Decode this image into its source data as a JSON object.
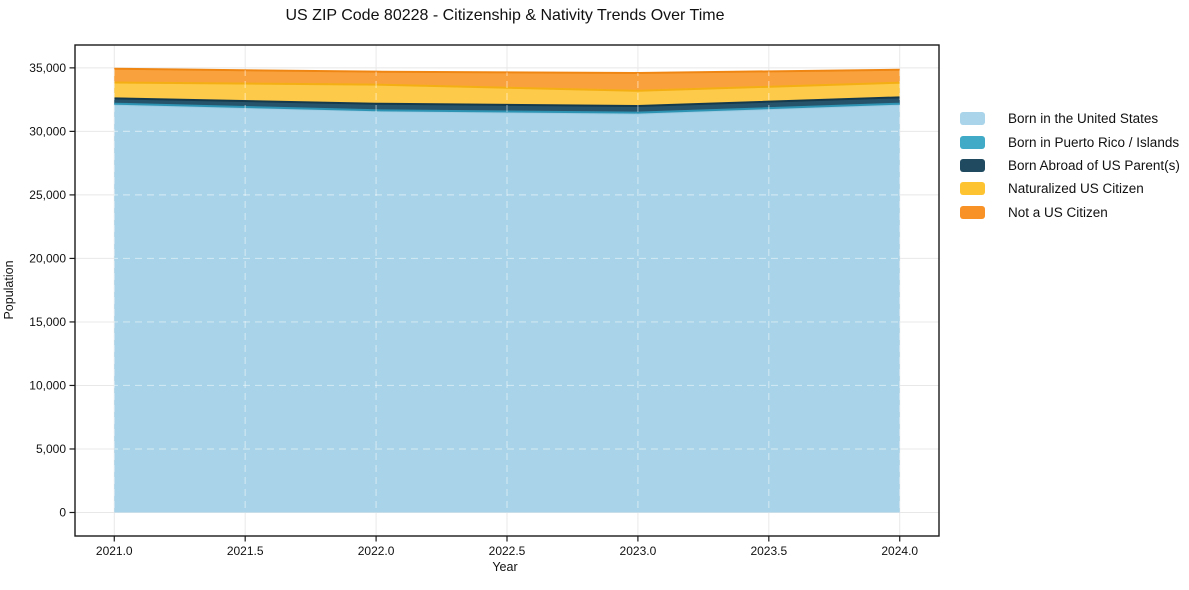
{
  "chart_data": {
    "type": "area",
    "stacked": true,
    "title": "US ZIP Code 80228 - Citizenship & Nativity Trends Over Time",
    "xlabel": "Year",
    "ylabel": "Population",
    "x": [
      2021,
      2022,
      2023,
      2024
    ],
    "series": [
      {
        "name": "Born in the United States",
        "values": [
          32100,
          31600,
          31400,
          32100
        ],
        "fill": "#A8D3E8",
        "edge": "#9CCBE2",
        "legend": "#A9D4E9"
      },
      {
        "name": "Born in Puerto Rico / Islands",
        "values": [
          80,
          60,
          80,
          80
        ],
        "fill": "#4FB0CA",
        "edge": "#2E94B4",
        "legend": "#41ABC7"
      },
      {
        "name": "Born Abroad of US Parent(s)",
        "values": [
          420,
          520,
          520,
          500
        ],
        "fill": "#26536A",
        "edge": "#15394C",
        "legend": "#1F4A5F"
      },
      {
        "name": "Naturalized US Citizen",
        "values": [
          1250,
          1500,
          1200,
          1150
        ],
        "fill": "#FDCA49",
        "edge": "#F4AF13",
        "legend": "#FDC330"
      },
      {
        "name": "Not a US Citizen",
        "values": [
          1080,
          1020,
          1400,
          1020
        ],
        "fill": "#F9A23D",
        "edge": "#EF8613",
        "legend": "#F89227"
      }
    ],
    "xlim": [
      2020.85,
      2024.15
    ],
    "ylim": [
      -1850,
      36800
    ],
    "xticks": {
      "values": [
        2021,
        2021.5,
        2022,
        2022.5,
        2023,
        2023.5,
        2024
      ],
      "labels": [
        "2021.0",
        "2021.5",
        "2022.0",
        "2022.5",
        "2023.0",
        "2023.5",
        "2024.0"
      ]
    },
    "yticks": {
      "values": [
        0,
        5000,
        10000,
        15000,
        20000,
        25000,
        30000,
        35000
      ],
      "labels": [
        "0",
        "5,000",
        "10,000",
        "15,000",
        "20,000",
        "25,000",
        "30,000",
        "35,000"
      ]
    },
    "grid": true,
    "legend_position": "outside-right"
  },
  "colors": {
    "background": "#ffffff",
    "grid": "#e8e8e8",
    "grid_overlay": "rgba(255,255,255,0.45)",
    "spine": "#1a1a1a",
    "tick": "#1a1a1a",
    "text": "#111111"
  }
}
